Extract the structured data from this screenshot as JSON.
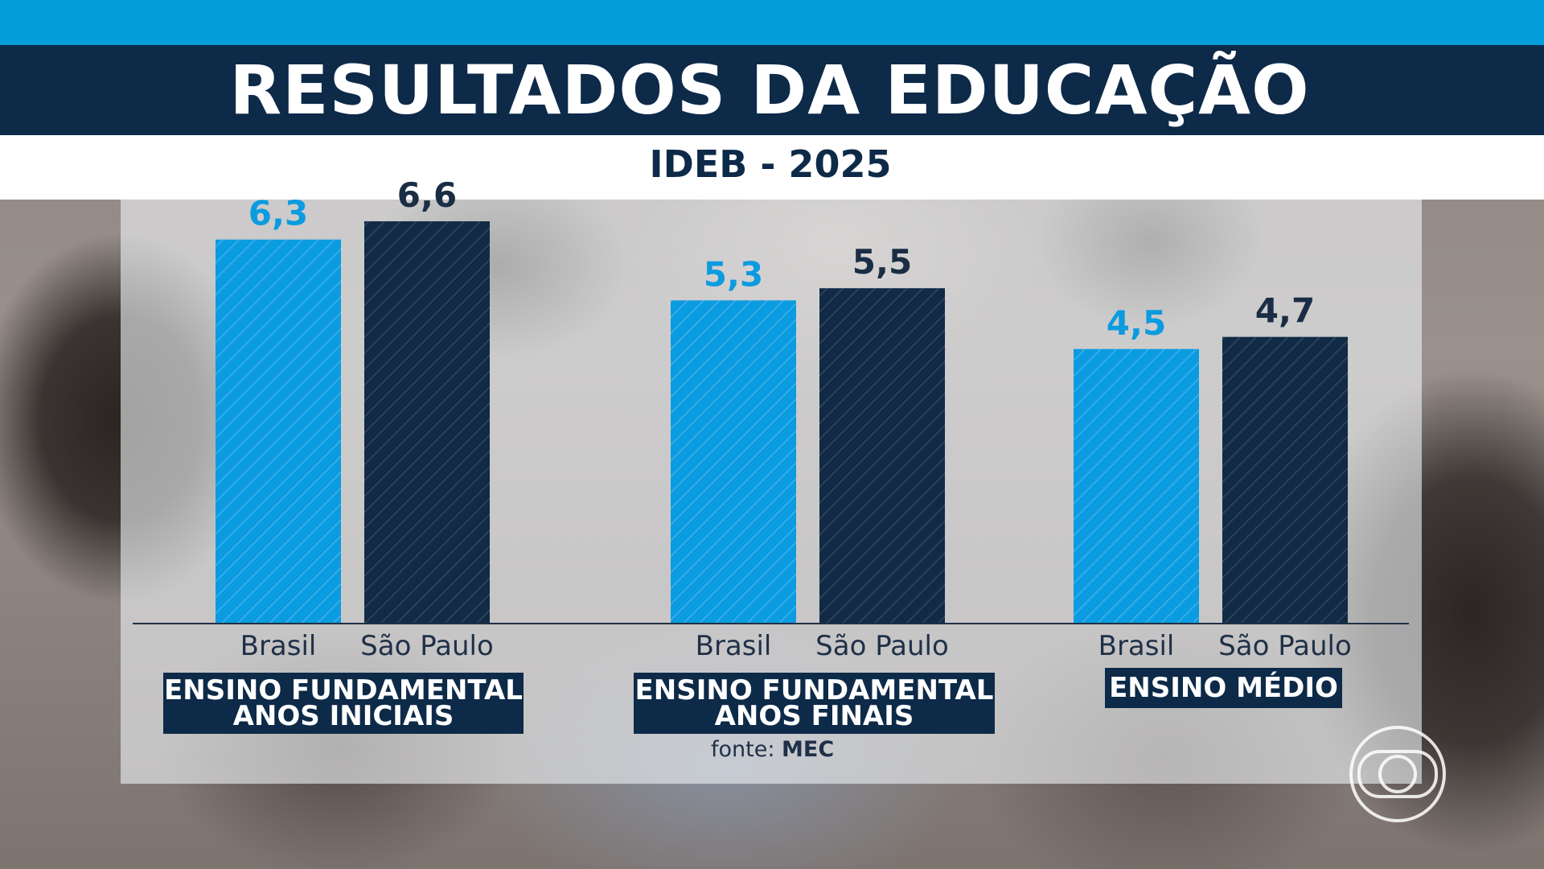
{
  "title": "RESULTADOS DA EDUCAÇÃO",
  "subtitle": "IDEB - 2025",
  "source": {
    "prefix": "fonte:",
    "name": "MEC"
  },
  "colors": {
    "brasil": "#0b9be0",
    "sao_paulo": "#112a45",
    "header": "#0d2a48",
    "accent_bar": "#049edb"
  },
  "logo_icon": "globo-logo-icon",
  "chart_data": {
    "type": "bar",
    "groups": [
      "ENSINO FUNDAMENTAL ANOS INICIAIS",
      "ENSINO FUNDAMENTAL ANOS FINAIS",
      "ENSINO MÉDIO"
    ],
    "group_lines": [
      [
        "ENSINO FUNDAMENTAL",
        "ANOS INICIAIS"
      ],
      [
        "ENSINO FUNDAMENTAL",
        "ANOS FINAIS"
      ],
      [
        "ENSINO MÉDIO"
      ]
    ],
    "series": [
      {
        "name": "Brasil",
        "values": [
          6.3,
          5.3,
          4.5
        ],
        "labels": [
          "6,3",
          "5,3",
          "4,5"
        ]
      },
      {
        "name": "São Paulo",
        "values": [
          6.6,
          5.5,
          4.7
        ],
        "labels": [
          "6,6",
          "5,5",
          "4,7"
        ]
      }
    ],
    "ylim": [
      0,
      6.6
    ],
    "grid": false,
    "legend": "none"
  }
}
